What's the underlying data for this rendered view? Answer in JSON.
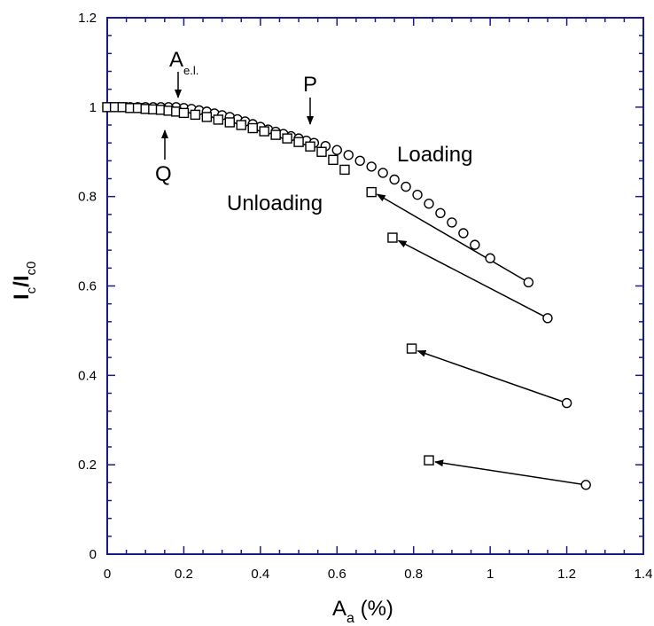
{
  "chart_data": {
    "type": "scatter",
    "xlabel_main": "A",
    "xlabel_sub": "a",
    "xlabel_unit": " (%)",
    "ylabel_i": "I",
    "ylabel_sub1": "c",
    "ylabel_slash": "/I",
    "ylabel_sub2": "c0",
    "xlim": [
      0,
      1.4
    ],
    "ylim": [
      0,
      1.2
    ],
    "xticks": [
      0,
      0.2,
      0.4,
      0.6,
      0.8,
      1,
      1.2,
      1.4
    ],
    "yticks": [
      0,
      0.2,
      0.4,
      0.6,
      0.8,
      1,
      1.2
    ],
    "xtick_labels": [
      "0",
      "0.2",
      "0.4",
      "0.6",
      "0.8",
      "1",
      "1.2",
      "1.4"
    ],
    "ytick_labels": [
      "0",
      "0.2",
      "0.4",
      "0.6",
      "0.8",
      "1",
      "1.2"
    ],
    "grid": false,
    "colors": {
      "axis": "#1a1a8c",
      "marker": "#000000"
    },
    "series": [
      {
        "marker": "circle",
        "points": [
          [
            0.0,
            1.0
          ],
          [
            0.02,
            1.0
          ],
          [
            0.04,
            1.0
          ],
          [
            0.06,
            1.0
          ],
          [
            0.08,
            1.0
          ],
          [
            0.1,
            1.0
          ],
          [
            0.12,
            1.0
          ],
          [
            0.14,
            1.0
          ],
          [
            0.16,
            1.0
          ],
          [
            0.18,
            1.0
          ],
          [
            0.2,
            0.998
          ],
          [
            0.22,
            0.996
          ],
          [
            0.24,
            0.993
          ],
          [
            0.26,
            0.99
          ],
          [
            0.28,
            0.986
          ],
          [
            0.3,
            0.982
          ],
          [
            0.32,
            0.978
          ],
          [
            0.34,
            0.973
          ],
          [
            0.36,
            0.968
          ],
          [
            0.38,
            0.962
          ],
          [
            0.4,
            0.956
          ],
          [
            0.42,
            0.95
          ],
          [
            0.44,
            0.945
          ],
          [
            0.46,
            0.94
          ],
          [
            0.48,
            0.935
          ],
          [
            0.5,
            0.93
          ],
          [
            0.52,
            0.925
          ],
          [
            0.54,
            0.92
          ],
          [
            0.57,
            0.913
          ],
          [
            0.6,
            0.904
          ],
          [
            0.63,
            0.893
          ],
          [
            0.66,
            0.88
          ],
          [
            0.69,
            0.867
          ],
          [
            0.72,
            0.853
          ],
          [
            0.75,
            0.838
          ],
          [
            0.78,
            0.822
          ],
          [
            0.81,
            0.804
          ],
          [
            0.84,
            0.784
          ],
          [
            0.87,
            0.763
          ],
          [
            0.9,
            0.742
          ],
          [
            0.93,
            0.718
          ],
          [
            0.96,
            0.692
          ],
          [
            1.0,
            0.662
          ],
          [
            1.1,
            0.608
          ],
          [
            1.15,
            0.528
          ],
          [
            1.2,
            0.338
          ],
          [
            1.25,
            0.155
          ]
        ]
      },
      {
        "marker": "square",
        "points": [
          [
            0.0,
            1.0
          ],
          [
            0.02,
            1.0
          ],
          [
            0.04,
            1.0
          ],
          [
            0.06,
            0.998
          ],
          [
            0.08,
            0.998
          ],
          [
            0.1,
            0.996
          ],
          [
            0.12,
            0.995
          ],
          [
            0.14,
            0.994
          ],
          [
            0.16,
            0.992
          ],
          [
            0.18,
            0.99
          ],
          [
            0.2,
            0.987
          ],
          [
            0.23,
            0.983
          ],
          [
            0.26,
            0.978
          ],
          [
            0.29,
            0.972
          ],
          [
            0.32,
            0.966
          ],
          [
            0.35,
            0.96
          ],
          [
            0.38,
            0.953
          ],
          [
            0.41,
            0.946
          ],
          [
            0.44,
            0.938
          ],
          [
            0.47,
            0.93
          ],
          [
            0.5,
            0.922
          ],
          [
            0.53,
            0.912
          ],
          [
            0.56,
            0.9
          ],
          [
            0.59,
            0.882
          ],
          [
            0.62,
            0.86
          ],
          [
            0.69,
            0.81
          ],
          [
            0.745,
            0.708
          ],
          [
            0.795,
            0.46
          ],
          [
            0.84,
            0.21
          ]
        ]
      }
    ],
    "arrows": [
      {
        "from": [
          1.1,
          0.608
        ],
        "to": [
          0.695,
          0.81
        ]
      },
      {
        "from": [
          1.15,
          0.528
        ],
        "to": [
          0.75,
          0.706
        ]
      },
      {
        "from": [
          1.2,
          0.338
        ],
        "to": [
          0.8,
          0.458
        ]
      },
      {
        "from": [
          1.25,
          0.155
        ],
        "to": [
          0.845,
          0.208
        ]
      }
    ],
    "annotations": {
      "ael_main": "A",
      "ael_sub": "e.l.",
      "p": "P",
      "q": "Q",
      "loading": "Loading",
      "unloading": "Unloading"
    }
  }
}
